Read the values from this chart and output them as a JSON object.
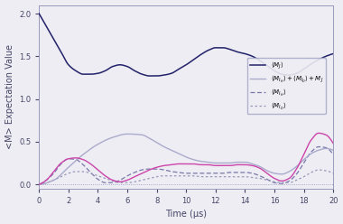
{
  "title": "",
  "xlabel": "Time (μs)",
  "ylabel": "<M> Expectation Value",
  "xlim": [
    0,
    20
  ],
  "ylim": [
    -0.05,
    2.1
  ],
  "yticks": [
    0.0,
    0.5,
    1.0,
    1.5,
    2.0
  ],
  "xticks": [
    0,
    2,
    4,
    6,
    8,
    10,
    12,
    14,
    16,
    18,
    20
  ],
  "background_color": "#eeedf3",
  "line_MJ_color": "#22226a",
  "line_MIH_color": "#7878aa",
  "line_MID_color": "#9898bb",
  "line_sum_gray_color": "#aaaacc",
  "line_sum_pink_color": "#cc44aa",
  "figsize": [
    3.8,
    2.48
  ],
  "dpi": 100
}
